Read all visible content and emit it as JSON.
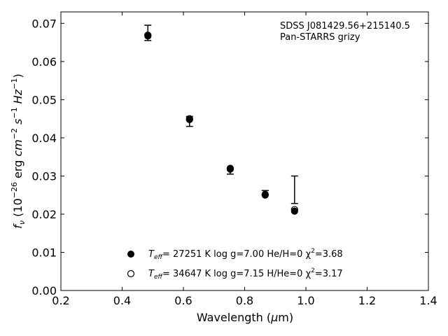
{
  "chart_data": {
    "type": "scatter",
    "xlabel": "Wavelength (μm)",
    "ylabel": "f_ν (10^-26 erg cm^-2 s^-1 Hz^-1)",
    "xlim": [
      0.2,
      1.4
    ],
    "ylim": [
      0.0,
      0.073
    ],
    "x_ticks": [
      0.2,
      0.4,
      0.6,
      0.8,
      1.0,
      1.2,
      1.4
    ],
    "x_tick_labels": [
      "0.2",
      "0.4",
      "0.6",
      "0.8",
      "1.0",
      "1.2",
      "1.4"
    ],
    "y_ticks": [
      0.0,
      0.01,
      0.02,
      0.03,
      0.04,
      0.05,
      0.06,
      0.07
    ],
    "y_tick_labels": [
      "0.00",
      "0.01",
      "0.02",
      "0.03",
      "0.04",
      "0.05",
      "0.06",
      "0.07"
    ],
    "annotation": [
      "SDSS J081429.56+215140.5",
      "Pan-STARRS grizy"
    ],
    "grid": false,
    "observed": {
      "x": [
        0.484,
        0.62,
        0.753,
        0.867,
        0.963
      ],
      "y": [
        0.0675,
        0.0443,
        0.0313,
        0.0256,
        0.0263
      ],
      "yerr_low": [
        0.002,
        0.0013,
        0.0008,
        0.0005,
        0.0035
      ],
      "yerr_high": [
        0.002,
        0.0013,
        0.0008,
        0.0006,
        0.0037
      ]
    },
    "series": [
      {
        "label_parts": [
          "T",
          "eff",
          "= 27251 K  log g=7.00  He/H=0  χ",
          "2",
          "=3.68"
        ],
        "marker": "filled-circle",
        "x": [
          0.484,
          0.62,
          0.753,
          0.867,
          0.963
        ],
        "y": [
          0.0667,
          0.0448,
          0.032,
          0.025,
          0.0208
        ]
      },
      {
        "label_parts": [
          "T",
          "eff",
          "= 34647 K  log g=7.15  H/He=0  χ",
          "2",
          "=3.17"
        ],
        "marker": "open-circle",
        "x": [
          0.484,
          0.62,
          0.753,
          0.867,
          0.963
        ],
        "y": [
          0.0669,
          0.045,
          0.0318,
          0.0252,
          0.0212
        ]
      }
    ],
    "legend_position": "lower-center"
  }
}
